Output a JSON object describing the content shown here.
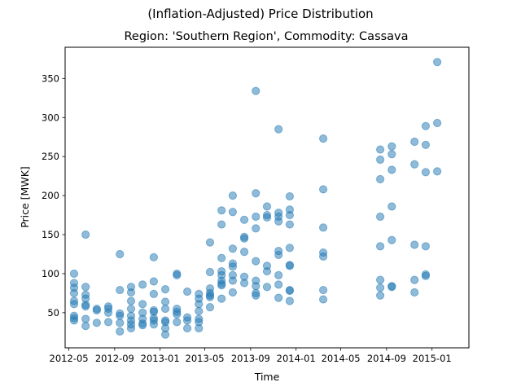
{
  "chart_data": {
    "type": "scatter",
    "suptitle": "(Inflation-Adjusted) Price Distribution",
    "title": "Region: 'Southern Region', Commodity: Cassava",
    "xlabel": "Time",
    "ylabel": "Price [MWK]",
    "xlim": [
      "2012-04-21",
      "2015-04-10"
    ],
    "ylim": [
      5,
      390
    ],
    "x_ticks": [
      "2012-05",
      "2012-09",
      "2013-01",
      "2013-05",
      "2013-09",
      "2014-01",
      "2014-05",
      "2014-09",
      "2015-01"
    ],
    "y_ticks": [
      50,
      100,
      150,
      200,
      250,
      300,
      350
    ],
    "grid": false,
    "legend": "none",
    "marker_color": "#1f77b4",
    "marker_alpha": 0.5,
    "series": [
      {
        "points": [
          [
            "2012-05-15",
            100
          ],
          [
            "2012-05-15",
            88
          ],
          [
            "2012-05-15",
            82
          ],
          [
            "2012-05-15",
            75
          ],
          [
            "2012-05-15",
            65
          ],
          [
            "2012-05-15",
            61
          ],
          [
            "2012-05-15",
            46
          ],
          [
            "2012-05-15",
            43
          ],
          [
            "2012-05-15",
            40
          ],
          [
            "2012-06-15",
            150
          ],
          [
            "2012-06-15",
            83
          ],
          [
            "2012-06-15",
            73
          ],
          [
            "2012-06-15",
            68
          ],
          [
            "2012-06-15",
            60
          ],
          [
            "2012-06-15",
            58
          ],
          [
            "2012-06-15",
            42
          ],
          [
            "2012-06-15",
            33
          ],
          [
            "2012-07-15",
            55
          ],
          [
            "2012-07-15",
            53
          ],
          [
            "2012-07-15",
            37
          ],
          [
            "2012-08-15",
            58
          ],
          [
            "2012-08-15",
            55
          ],
          [
            "2012-08-15",
            50
          ],
          [
            "2012-08-15",
            38
          ],
          [
            "2012-09-15",
            125
          ],
          [
            "2012-09-15",
            79
          ],
          [
            "2012-09-15",
            49
          ],
          [
            "2012-09-15",
            46
          ],
          [
            "2012-09-15",
            37
          ],
          [
            "2012-09-15",
            26
          ],
          [
            "2012-10-15",
            83
          ],
          [
            "2012-10-15",
            76
          ],
          [
            "2012-10-15",
            65
          ],
          [
            "2012-10-15",
            55
          ],
          [
            "2012-10-15",
            46
          ],
          [
            "2012-10-15",
            40
          ],
          [
            "2012-10-15",
            35
          ],
          [
            "2012-10-15",
            30
          ],
          [
            "2012-11-15",
            86
          ],
          [
            "2012-11-15",
            61
          ],
          [
            "2012-11-15",
            50
          ],
          [
            "2012-11-15",
            42
          ],
          [
            "2012-11-15",
            36
          ],
          [
            "2012-11-15",
            34
          ],
          [
            "2012-12-15",
            121
          ],
          [
            "2012-12-15",
            90
          ],
          [
            "2012-12-15",
            74
          ],
          [
            "2012-12-15",
            53
          ],
          [
            "2012-12-15",
            51
          ],
          [
            "2012-12-15",
            43
          ],
          [
            "2012-12-15",
            40
          ],
          [
            "2012-12-15",
            35
          ],
          [
            "2013-01-15",
            80
          ],
          [
            "2013-01-15",
            64
          ],
          [
            "2013-01-15",
            55
          ],
          [
            "2013-01-15",
            40
          ],
          [
            "2013-01-15",
            38
          ],
          [
            "2013-01-15",
            30
          ],
          [
            "2013-01-15",
            22
          ],
          [
            "2013-02-15",
            100
          ],
          [
            "2013-02-15",
            98
          ],
          [
            "2013-02-15",
            55
          ],
          [
            "2013-02-15",
            51
          ],
          [
            "2013-02-15",
            48
          ],
          [
            "2013-02-15",
            38
          ],
          [
            "2013-03-15",
            77
          ],
          [
            "2013-03-15",
            44
          ],
          [
            "2013-03-15",
            40
          ],
          [
            "2013-03-15",
            30
          ],
          [
            "2013-04-15",
            74
          ],
          [
            "2013-04-15",
            68
          ],
          [
            "2013-04-15",
            61
          ],
          [
            "2013-04-15",
            52
          ],
          [
            "2013-04-15",
            42
          ],
          [
            "2013-04-15",
            38
          ],
          [
            "2013-04-15",
            30
          ],
          [
            "2013-05-15",
            140
          ],
          [
            "2013-05-15",
            102
          ],
          [
            "2013-05-15",
            81
          ],
          [
            "2013-05-15",
            75
          ],
          [
            "2013-05-15",
            72
          ],
          [
            "2013-05-15",
            70
          ],
          [
            "2013-05-15",
            57
          ],
          [
            "2013-06-15",
            181
          ],
          [
            "2013-06-15",
            163
          ],
          [
            "2013-06-15",
            120
          ],
          [
            "2013-06-15",
            103
          ],
          [
            "2013-06-15",
            98
          ],
          [
            "2013-06-15",
            91
          ],
          [
            "2013-06-15",
            87
          ],
          [
            "2013-06-15",
            85
          ],
          [
            "2013-06-15",
            68
          ],
          [
            "2013-07-15",
            200
          ],
          [
            "2013-07-15",
            179
          ],
          [
            "2013-07-15",
            132
          ],
          [
            "2013-07-15",
            113
          ],
          [
            "2013-07-15",
            109
          ],
          [
            "2013-07-15",
            98
          ],
          [
            "2013-07-15",
            91
          ],
          [
            "2013-07-15",
            76
          ],
          [
            "2013-08-15",
            169
          ],
          [
            "2013-08-15",
            147
          ],
          [
            "2013-08-15",
            145
          ],
          [
            "2013-08-15",
            128
          ],
          [
            "2013-08-15",
            96
          ],
          [
            "2013-08-15",
            88
          ],
          [
            "2013-09-15",
            334
          ],
          [
            "2013-09-15",
            203
          ],
          [
            "2013-09-15",
            173
          ],
          [
            "2013-09-15",
            158
          ],
          [
            "2013-09-15",
            116
          ],
          [
            "2013-09-15",
            91
          ],
          [
            "2013-09-15",
            84
          ],
          [
            "2013-09-15",
            75
          ],
          [
            "2013-09-15",
            72
          ],
          [
            "2013-10-15",
            186
          ],
          [
            "2013-10-15",
            175
          ],
          [
            "2013-10-15",
            172
          ],
          [
            "2013-10-15",
            110
          ],
          [
            "2013-10-15",
            103
          ],
          [
            "2013-10-15",
            83
          ],
          [
            "2013-11-15",
            285
          ],
          [
            "2013-11-15",
            178
          ],
          [
            "2013-11-15",
            173
          ],
          [
            "2013-11-15",
            167
          ],
          [
            "2013-11-15",
            129
          ],
          [
            "2013-11-15",
            124
          ],
          [
            "2013-11-15",
            98
          ],
          [
            "2013-11-15",
            86
          ],
          [
            "2013-11-15",
            69
          ],
          [
            "2013-12-15",
            199
          ],
          [
            "2013-12-15",
            182
          ],
          [
            "2013-12-15",
            175
          ],
          [
            "2013-12-15",
            163
          ],
          [
            "2013-12-15",
            133
          ],
          [
            "2013-12-15",
            111
          ],
          [
            "2013-12-15",
            110
          ],
          [
            "2013-12-15",
            79
          ],
          [
            "2013-12-15",
            78
          ],
          [
            "2013-12-15",
            65
          ],
          [
            "2014-03-15",
            273
          ],
          [
            "2014-03-15",
            208
          ],
          [
            "2014-03-15",
            159
          ],
          [
            "2014-03-15",
            127
          ],
          [
            "2014-03-15",
            122
          ],
          [
            "2014-03-15",
            79
          ],
          [
            "2014-03-15",
            67
          ],
          [
            "2014-08-15",
            259
          ],
          [
            "2014-08-15",
            246
          ],
          [
            "2014-08-15",
            221
          ],
          [
            "2014-08-15",
            173
          ],
          [
            "2014-08-15",
            135
          ],
          [
            "2014-08-15",
            92
          ],
          [
            "2014-08-15",
            82
          ],
          [
            "2014-08-15",
            72
          ],
          [
            "2014-09-15",
            263
          ],
          [
            "2014-09-15",
            253
          ],
          [
            "2014-09-15",
            233
          ],
          [
            "2014-09-15",
            186
          ],
          [
            "2014-09-15",
            143
          ],
          [
            "2014-09-15",
            84
          ],
          [
            "2014-09-15",
            83
          ],
          [
            "2014-11-15",
            269
          ],
          [
            "2014-11-15",
            240
          ],
          [
            "2014-11-15",
            137
          ],
          [
            "2014-11-15",
            92
          ],
          [
            "2014-11-15",
            76
          ],
          [
            "2014-12-15",
            289
          ],
          [
            "2014-12-15",
            265
          ],
          [
            "2014-12-15",
            230
          ],
          [
            "2014-12-15",
            135
          ],
          [
            "2014-12-15",
            99
          ],
          [
            "2014-12-15",
            97
          ],
          [
            "2015-01-15",
            371
          ],
          [
            "2015-01-15",
            293
          ],
          [
            "2015-01-15",
            231
          ]
        ]
      }
    ]
  }
}
